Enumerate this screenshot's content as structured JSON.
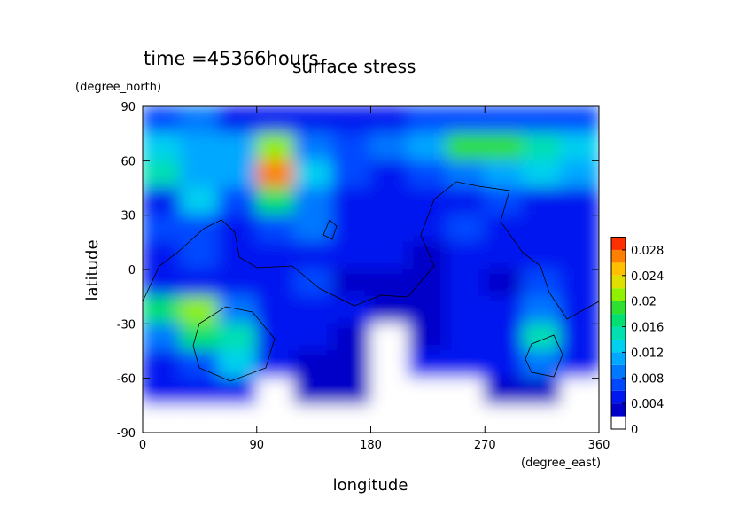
{
  "chart_data": {
    "type": "contour",
    "title": "surface stress",
    "annotation": "time =45366hours",
    "x_label": "longitude",
    "x_unit": "(degree_east)",
    "y_label": "latitude",
    "y_unit": "(degree_north)",
    "xlim": [
      0,
      360
    ],
    "xticks": [
      0,
      90,
      180,
      270,
      360
    ],
    "ylim": [
      -90,
      90
    ],
    "yticks": [
      -90,
      -60,
      -30,
      0,
      30,
      60,
      90
    ],
    "x": [
      15,
      45,
      75,
      105,
      135,
      165,
      195,
      225,
      255,
      285,
      315,
      345
    ],
    "y": [
      82.5,
      67.5,
      52.5,
      37.5,
      22.5,
      7.5,
      -7.5,
      -22.5,
      -37.5,
      -52.5,
      -67.5,
      -82.5
    ],
    "z": [
      [
        0.006,
        0.008,
        0.004,
        0.004,
        0.004,
        0.004,
        0.004,
        0.006,
        0.006,
        0.006,
        0.006,
        0.006
      ],
      [
        0.012,
        0.01,
        0.01,
        0.02,
        0.008,
        0.006,
        0.008,
        0.01,
        0.018,
        0.018,
        0.014,
        0.012
      ],
      [
        0.014,
        0.01,
        0.01,
        0.026,
        0.012,
        0.006,
        0.004,
        0.006,
        0.008,
        0.01,
        0.012,
        0.01
      ],
      [
        0.004,
        0.012,
        0.006,
        0.016,
        0.008,
        0.004,
        0.004,
        0.004,
        0.004,
        0.006,
        0.004,
        0.004
      ],
      [
        0.006,
        0.006,
        0.004,
        0.006,
        0.008,
        0.004,
        0.004,
        0.004,
        0.006,
        0.004,
        0.004,
        0.004
      ],
      [
        0.004,
        0.006,
        0.004,
        0.004,
        0.004,
        0.004,
        0.004,
        0.002,
        0.004,
        0.004,
        0.004,
        0.004
      ],
      [
        0.004,
        0.004,
        0.004,
        0.004,
        0.006,
        0.002,
        0.002,
        0.002,
        0.004,
        0.002,
        0.006,
        0.004
      ],
      [
        0.016,
        0.02,
        0.008,
        0.004,
        0.004,
        0.004,
        0.002,
        0.002,
        0.004,
        0.004,
        0.008,
        0.004
      ],
      [
        0.008,
        0.016,
        0.014,
        0.004,
        0.004,
        0.002,
        0,
        0.002,
        0.004,
        0.004,
        0.014,
        0.004
      ],
      [
        0.004,
        0.006,
        0.012,
        0.004,
        0.002,
        0.002,
        0,
        0.004,
        0.004,
        0.004,
        0.008,
        0.004
      ],
      [
        0.004,
        0.004,
        0.004,
        0,
        0.002,
        0.002,
        0,
        0,
        0,
        0.002,
        0.002,
        0
      ],
      [
        0,
        0,
        0,
        0,
        0,
        0,
        0,
        0,
        0,
        0,
        0,
        0
      ]
    ],
    "colorbar": {
      "levels": [
        0,
        0.002,
        0.004,
        0.006,
        0.008,
        0.01,
        0.012,
        0.014,
        0.016,
        0.018,
        0.02,
        0.022,
        0.024,
        0.026,
        0.028,
        0.03
      ],
      "colors": [
        "#ffffff",
        "#0000c8",
        "#0018f0",
        "#0048ff",
        "#0078ff",
        "#00a8ff",
        "#00d0f0",
        "#00e0b0",
        "#00e070",
        "#30e030",
        "#90f000",
        "#e0e000",
        "#ffc000",
        "#ff8000",
        "#ff3000"
      ],
      "ticks": [
        0,
        0.004,
        0.008,
        0.012,
        0.016,
        0.02,
        0.024,
        0.028
      ]
    }
  }
}
